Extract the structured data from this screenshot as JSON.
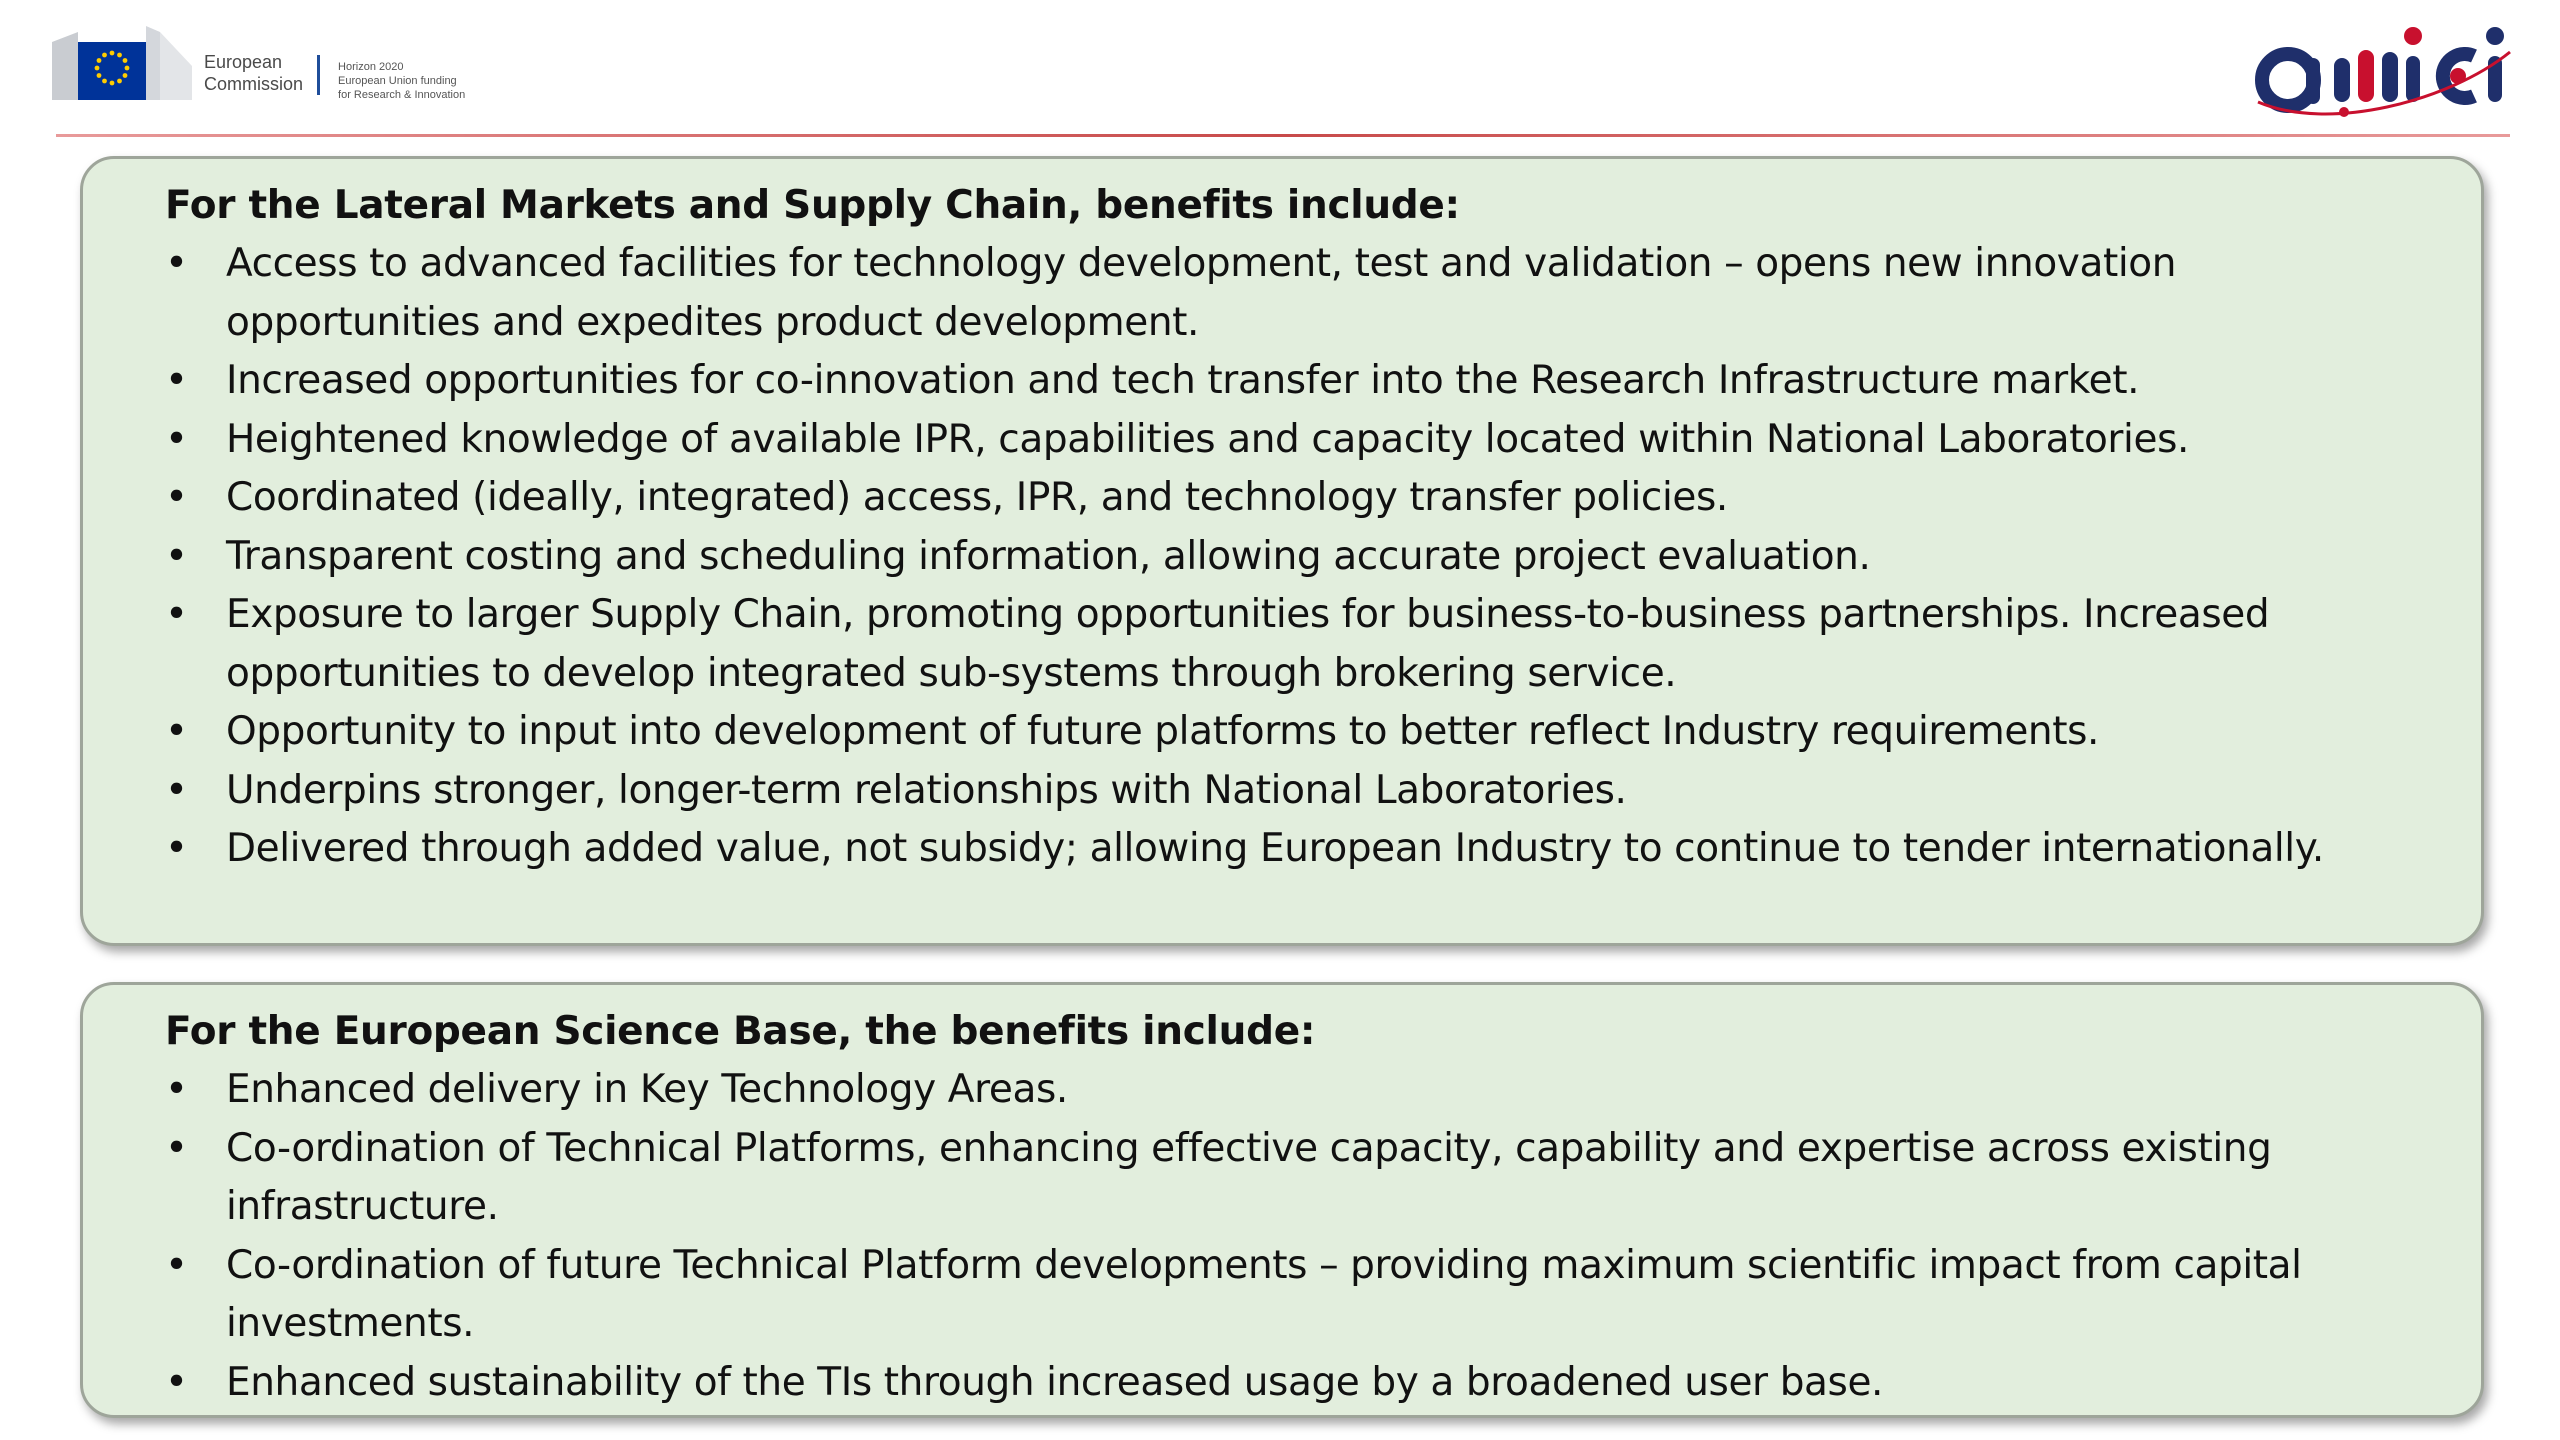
{
  "header": {
    "ec_logo": {
      "line1": "European",
      "line2": "Commission",
      "program_line1": "Horizon 2020",
      "program_line2": "European Union funding",
      "program_line3": "for Research & Innovation"
    },
    "project_logo": {
      "text": "amici",
      "colors": {
        "navy": "#1f2f6b",
        "red": "#c8102e"
      }
    },
    "rule_color": "#c84a4a"
  },
  "sections": [
    {
      "heading": "For the Lateral Markets and Supply Chain, benefits include:",
      "bullets": [
        "Access to advanced facilities for technology development, test and validation – opens new innovation opportunities and expedites product development.",
        "Increased opportunities for co-innovation and tech transfer into the Research Infrastructure market.",
        "Heightened knowledge of available IPR, capabilities and capacity located within National Laboratories.",
        "Coordinated (ideally, integrated) access, IPR, and technology transfer policies.",
        "Transparent costing and scheduling information, allowing accurate project evaluation.",
        "Exposure to larger Supply Chain, promoting opportunities for business-to-business partnerships. Increased opportunities to develop integrated sub-systems through brokering service.",
        "Opportunity to input into development of future platforms to better reflect Industry requirements.",
        "Underpins stronger, longer-term relationships with National Laboratories.",
        "Delivered through added value, not subsidy; allowing European Industry to continue to tender internationally."
      ]
    },
    {
      "heading": "For the European Science Base, the benefits include:",
      "bullets": [
        "Enhanced delivery in Key Technology Areas.",
        "Co-ordination of Technical Platforms, enhancing effective capacity, capability and expertise across existing infrastructure.",
        "Co-ordination of future Technical Platform developments  – providing maximum scientific impact from capital investments.",
        "Enhanced sustainability of the TIs through increased usage by a broadened user base."
      ]
    }
  ],
  "box_style": {
    "fill": "#e2eedd",
    "border": "#9ea59a"
  },
  "bullet_glyph": "•"
}
